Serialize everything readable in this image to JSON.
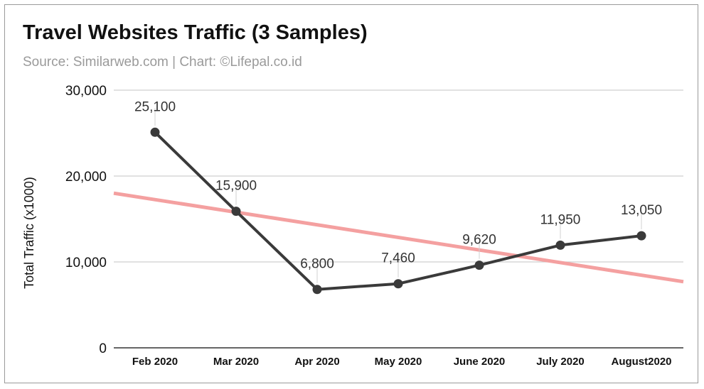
{
  "chart_data": {
    "type": "line",
    "title": "Travel Websites Traffic (3 Samples)",
    "subtitle": "Source: Similarweb.com | Chart: ©Lifepal.co.id",
    "ylabel": "Total Traffic (x1000)",
    "xlabel": "",
    "ylim": [
      0,
      30000
    ],
    "yticks": [
      0,
      10000,
      20000,
      30000
    ],
    "ytick_labels": [
      "0",
      "10,000",
      "20,000",
      "30,000"
    ],
    "grid": true,
    "categories": [
      "Feb 2020",
      "Mar 2020",
      "Apr 2020",
      "May 2020",
      "June 2020",
      "July 2020",
      "August2020"
    ],
    "series": [
      {
        "name": "Total Traffic",
        "values": [
          25100,
          15900,
          6800,
          7460,
          9620,
          11950,
          13050
        ],
        "labels": [
          "25,100",
          "15,900",
          "6,800",
          "7,460",
          "9,620",
          "11,950",
          "13,050"
        ],
        "color": "#3a3a3a"
      }
    ],
    "trendline": {
      "name": "Trendline",
      "start_value": 18000,
      "end_value": 7700,
      "color": "#f4a0a0"
    }
  }
}
